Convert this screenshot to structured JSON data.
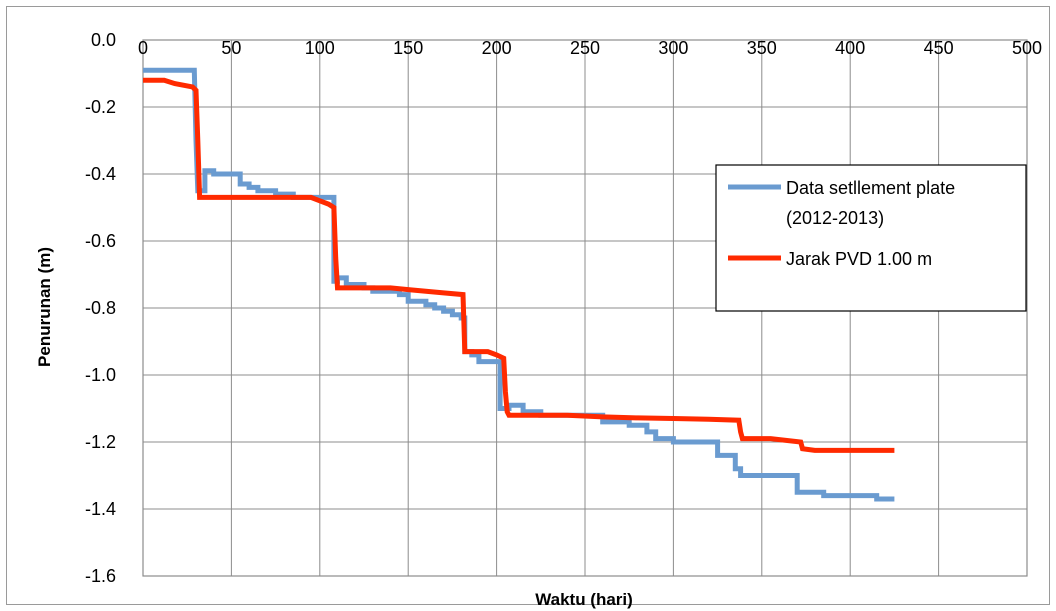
{
  "chart_data": {
    "type": "line",
    "title": "",
    "xlabel": "Waktu (hari)",
    "ylabel": "Penurunan (m)",
    "xlim": [
      0,
      500
    ],
    "ylim": [
      -1.6,
      0.0
    ],
    "x_ticks": [
      0,
      50,
      100,
      150,
      200,
      250,
      300,
      350,
      400,
      450,
      500
    ],
    "y_ticks": [
      0.0,
      -0.2,
      -0.4,
      -0.6,
      -0.8,
      -1.0,
      -1.2,
      -1.4,
      -1.6
    ],
    "x_tick_labels": [
      "0",
      "50",
      "100",
      "150",
      "200",
      "250",
      "300",
      "350",
      "400",
      "450",
      "500"
    ],
    "y_tick_labels": [
      "0.0",
      "-0.2",
      "-0.4",
      "-0.6",
      "-0.8",
      "-1.0",
      "-1.2",
      "-1.4",
      "-1.6"
    ],
    "grid": true,
    "legend_position": "right",
    "series": [
      {
        "name": "Data setllement plate (2012-2013)",
        "color": "#6a9bd0",
        "x": [
          0,
          29,
          30,
          31,
          32,
          35,
          35,
          40,
          40,
          45,
          45,
          55,
          55,
          60,
          60,
          65,
          65,
          75,
          75,
          85,
          85,
          90,
          90,
          100,
          100,
          108,
          108,
          110,
          110,
          115,
          115,
          125,
          125,
          130,
          130,
          145,
          145,
          150,
          150,
          160,
          160,
          165,
          165,
          170,
          170,
          175,
          175,
          180,
          180,
          182,
          182,
          186,
          186,
          190,
          190,
          198,
          198,
          202,
          202,
          207,
          207,
          215,
          215,
          225,
          225,
          260,
          260,
          275,
          275,
          285,
          285,
          290,
          290,
          300,
          300,
          310,
          310,
          325,
          325,
          335,
          335,
          338,
          338,
          345,
          345,
          355,
          355,
          370,
          370,
          372,
          372,
          385,
          385,
          405,
          405,
          415,
          415,
          425
        ],
        "y": [
          -0.09,
          -0.09,
          -0.3,
          -0.45,
          -0.45,
          -0.45,
          -0.39,
          -0.39,
          -0.4,
          -0.4,
          -0.4,
          -0.4,
          -0.43,
          -0.43,
          -0.44,
          -0.44,
          -0.45,
          -0.45,
          -0.46,
          -0.46,
          -0.47,
          -0.47,
          -0.47,
          -0.47,
          -0.47,
          -0.47,
          -0.72,
          -0.72,
          -0.71,
          -0.71,
          -0.73,
          -0.73,
          -0.74,
          -0.74,
          -0.75,
          -0.75,
          -0.76,
          -0.76,
          -0.78,
          -0.78,
          -0.79,
          -0.79,
          -0.8,
          -0.8,
          -0.81,
          -0.81,
          -0.82,
          -0.82,
          -0.83,
          -0.83,
          -0.93,
          -0.93,
          -0.94,
          -0.94,
          -0.96,
          -0.96,
          -0.96,
          -0.96,
          -1.1,
          -1.1,
          -1.09,
          -1.09,
          -1.11,
          -1.11,
          -1.12,
          -1.12,
          -1.14,
          -1.14,
          -1.15,
          -1.15,
          -1.17,
          -1.17,
          -1.19,
          -1.19,
          -1.2,
          -1.2,
          -1.2,
          -1.2,
          -1.24,
          -1.24,
          -1.28,
          -1.28,
          -1.3,
          -1.3,
          -1.3,
          -1.3,
          -1.3,
          -1.3,
          -1.35,
          -1.35,
          -1.35,
          -1.35,
          -1.36,
          -1.36,
          -1.36,
          -1.36,
          -1.37,
          -1.37
        ]
      },
      {
        "name": "Jarak PVD 1.00 m",
        "color": "#ff2a00",
        "x": [
          0,
          12,
          18,
          28,
          30,
          31,
          32,
          60,
          70,
          85,
          95,
          100,
          105,
          108,
          109,
          110,
          120,
          130,
          140,
          150,
          160,
          170,
          181,
          182,
          185,
          195,
          200,
          204,
          205,
          206,
          207,
          220,
          240,
          260,
          280,
          300,
          320,
          337,
          338,
          339,
          345,
          355,
          372,
          373,
          380,
          390,
          400,
          425
        ],
        "y": [
          -0.12,
          -0.12,
          -0.13,
          -0.14,
          -0.15,
          -0.3,
          -0.47,
          -0.47,
          -0.47,
          -0.47,
          -0.47,
          -0.48,
          -0.49,
          -0.5,
          -0.65,
          -0.74,
          -0.74,
          -0.74,
          -0.74,
          -0.745,
          -0.75,
          -0.755,
          -0.76,
          -0.93,
          -0.93,
          -0.93,
          -0.94,
          -0.95,
          -1.05,
          -1.11,
          -1.12,
          -1.12,
          -1.12,
          -1.125,
          -1.128,
          -1.13,
          -1.132,
          -1.135,
          -1.17,
          -1.19,
          -1.19,
          -1.19,
          -1.2,
          -1.22,
          -1.225,
          -1.225,
          -1.225,
          -1.225
        ]
      }
    ]
  }
}
